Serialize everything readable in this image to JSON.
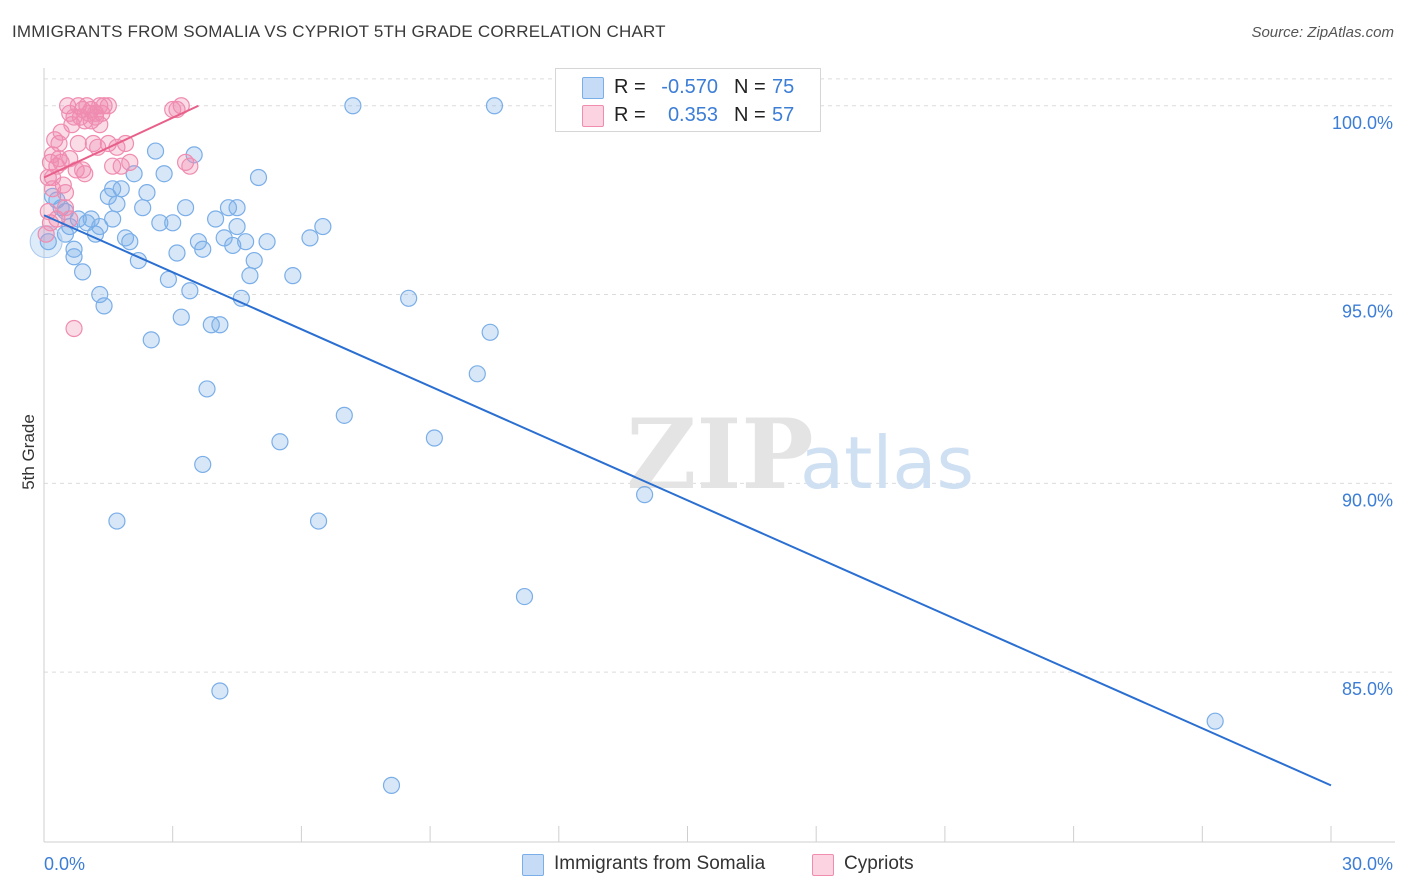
{
  "header": {
    "title": "IMMIGRANTS FROM SOMALIA VS CYPRIOT 5TH GRADE CORRELATION CHART",
    "source": "Source: ZipAtlas.com"
  },
  "watermark": {
    "zip": "ZIP",
    "atlas": "atlas"
  },
  "colors": {
    "blue": "#7aaee8",
    "blue_line": "#2a6fd1",
    "pink": "#f08cb0",
    "pink_line": "#e8608a",
    "axis_text": "#3c7dd6"
  },
  "legend": {
    "rows": [
      {
        "r_label": "R =",
        "r_value": "-0.570",
        "n_label": "N =",
        "n_value": "75"
      },
      {
        "r_label": "R =",
        "r_value": "0.353",
        "n_label": "N =",
        "n_value": "57"
      }
    ]
  },
  "bottom_legend": {
    "series1": "Immigrants from Somalia",
    "series2": "Cypriots"
  },
  "chart_data": {
    "type": "scatter",
    "xlabel": "",
    "ylabel": "5th Grade",
    "xlim": [
      0,
      30
    ],
    "ylim": [
      80.5,
      101.0
    ],
    "x_tick_labels": [
      "0.0%",
      "30.0%"
    ],
    "y_ticks": [
      85,
      90,
      95,
      100
    ],
    "y_tick_labels": [
      "85.0%",
      "90.0%",
      "95.0%",
      "100.0%"
    ],
    "grid": "horizontal dashed",
    "series": [
      {
        "name": "Immigrants from Somalia",
        "color": "#7aaee8",
        "trend": {
          "x": [
            0,
            30
          ],
          "y": [
            97.1,
            82.0
          ]
        },
        "points": [
          [
            0.1,
            96.4
          ],
          [
            0.3,
            97.5
          ],
          [
            0.4,
            97.3
          ],
          [
            0.5,
            96.6
          ],
          [
            0.5,
            97.2
          ],
          [
            0.6,
            96.8
          ],
          [
            0.7,
            96.2
          ],
          [
            0.7,
            96.0
          ],
          [
            0.9,
            95.6
          ],
          [
            1.0,
            96.9
          ],
          [
            1.1,
            97.0
          ],
          [
            1.2,
            96.6
          ],
          [
            1.3,
            96.8
          ],
          [
            1.3,
            95.0
          ],
          [
            1.4,
            94.7
          ],
          [
            1.5,
            97.6
          ],
          [
            1.6,
            97.8
          ],
          [
            1.7,
            97.4
          ],
          [
            1.8,
            97.8
          ],
          [
            1.9,
            96.5
          ],
          [
            2.0,
            96.4
          ],
          [
            2.1,
            98.2
          ],
          [
            2.2,
            95.9
          ],
          [
            2.3,
            97.3
          ],
          [
            2.4,
            97.7
          ],
          [
            2.5,
            93.8
          ],
          [
            2.6,
            98.8
          ],
          [
            2.7,
            96.9
          ],
          [
            2.8,
            98.2
          ],
          [
            2.9,
            95.4
          ],
          [
            3.0,
            96.9
          ],
          [
            3.1,
            96.1
          ],
          [
            3.2,
            94.4
          ],
          [
            3.3,
            97.3
          ],
          [
            3.4,
            95.1
          ],
          [
            3.5,
            98.7
          ],
          [
            3.6,
            96.4
          ],
          [
            3.7,
            96.2
          ],
          [
            3.8,
            92.5
          ],
          [
            3.9,
            94.2
          ],
          [
            4.0,
            97.0
          ],
          [
            4.1,
            94.2
          ],
          [
            4.2,
            96.5
          ],
          [
            4.3,
            97.3
          ],
          [
            4.4,
            96.3
          ],
          [
            4.5,
            97.3
          ],
          [
            4.6,
            94.9
          ],
          [
            4.7,
            96.4
          ],
          [
            4.8,
            95.5
          ],
          [
            4.9,
            95.9
          ],
          [
            5.0,
            98.1
          ],
          [
            5.2,
            96.4
          ],
          [
            4.5,
            96.8
          ],
          [
            3.7,
            90.5
          ],
          [
            1.7,
            89.0
          ],
          [
            4.1,
            84.5
          ],
          [
            5.5,
            91.1
          ],
          [
            5.8,
            95.5
          ],
          [
            6.2,
            96.5
          ],
          [
            6.4,
            89.0
          ],
          [
            6.5,
            96.8
          ],
          [
            7.0,
            91.8
          ],
          [
            7.2,
            100.0
          ],
          [
            8.1,
            82.0
          ],
          [
            8.5,
            94.9
          ],
          [
            9.1,
            91.2
          ],
          [
            10.1,
            92.9
          ],
          [
            10.4,
            94.0
          ],
          [
            10.5,
            100.0
          ],
          [
            11.2,
            87.0
          ],
          [
            14.0,
            89.7
          ],
          [
            27.3,
            83.7
          ],
          [
            0.2,
            97.6
          ],
          [
            0.8,
            97.0
          ],
          [
            1.6,
            97.0
          ]
        ]
      },
      {
        "name": "Cypriots",
        "color": "#f08cb0",
        "trend": {
          "x": [
            0,
            3.6
          ],
          "y": [
            98.1,
            100.0
          ]
        },
        "points": [
          [
            0.05,
            96.6
          ],
          [
            0.1,
            98.1
          ],
          [
            0.15,
            98.5
          ],
          [
            0.2,
            97.8
          ],
          [
            0.25,
            99.1
          ],
          [
            0.3,
            98.4
          ],
          [
            0.35,
            98.6
          ],
          [
            0.4,
            99.3
          ],
          [
            0.45,
            97.9
          ],
          [
            0.5,
            97.7
          ],
          [
            0.55,
            100.0
          ],
          [
            0.6,
            99.8
          ],
          [
            0.65,
            99.5
          ],
          [
            0.7,
            99.7
          ],
          [
            0.75,
            98.3
          ],
          [
            0.8,
            100.0
          ],
          [
            0.85,
            99.7
          ],
          [
            0.9,
            99.9
          ],
          [
            0.95,
            99.6
          ],
          [
            1.0,
            100.0
          ],
          [
            1.05,
            99.8
          ],
          [
            1.1,
            99.9
          ],
          [
            1.15,
            99.0
          ],
          [
            1.2,
            99.7
          ],
          [
            1.25,
            98.9
          ],
          [
            1.3,
            100.0
          ],
          [
            1.35,
            99.8
          ],
          [
            1.4,
            100.0
          ],
          [
            1.5,
            99.0
          ],
          [
            1.6,
            98.4
          ],
          [
            1.7,
            98.9
          ],
          [
            1.9,
            99.0
          ],
          [
            2.0,
            98.5
          ],
          [
            0.7,
            94.1
          ],
          [
            0.6,
            97.0
          ],
          [
            0.3,
            97.0
          ],
          [
            0.2,
            98.1
          ],
          [
            0.4,
            98.5
          ],
          [
            0.5,
            97.3
          ],
          [
            0.8,
            99.0
          ],
          [
            0.9,
            98.3
          ],
          [
            1.1,
            99.6
          ],
          [
            1.2,
            99.8
          ],
          [
            3.0,
            99.9
          ],
          [
            3.2,
            100.0
          ],
          [
            3.3,
            98.5
          ],
          [
            3.4,
            98.4
          ],
          [
            3.1,
            99.9
          ],
          [
            1.5,
            100.0
          ],
          [
            1.3,
            99.5
          ],
          [
            0.1,
            97.2
          ],
          [
            0.2,
            98.7
          ],
          [
            0.35,
            99.0
          ],
          [
            0.6,
            98.6
          ],
          [
            0.95,
            98.2
          ],
          [
            1.8,
            98.4
          ],
          [
            0.15,
            96.9
          ]
        ]
      }
    ]
  }
}
